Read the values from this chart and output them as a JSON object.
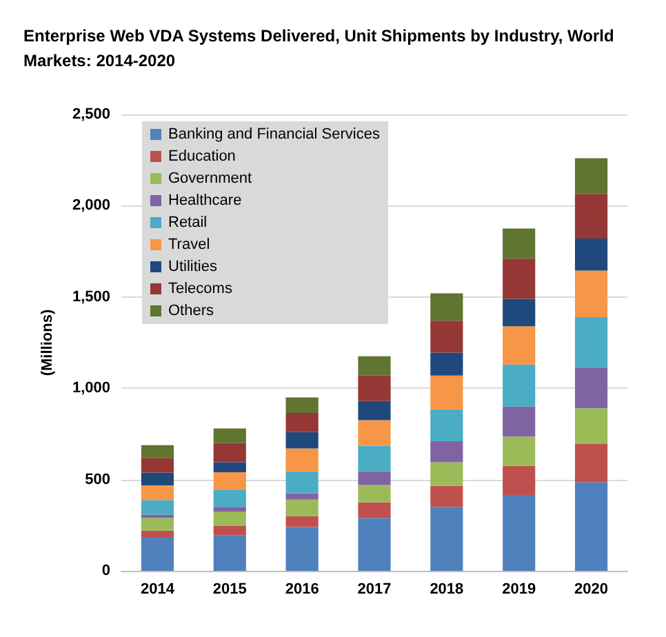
{
  "chart_data": {
    "type": "bar",
    "title": "Enterprise Web VDA Systems Delivered, Unit Shipments by Industry, World Markets: 2014-2020",
    "ylabel": "(Millions)",
    "categories": [
      "2014",
      "2015",
      "2016",
      "2017",
      "2018",
      "2019",
      "2020"
    ],
    "stacked": true,
    "series": [
      {
        "name": "Banking and Financial Services",
        "color": "#4f81bd",
        "values": [
          185,
          195,
          240,
          290,
          350,
          415,
          485
        ]
      },
      {
        "name": "Education",
        "color": "#c0504d",
        "values": [
          35,
          50,
          60,
          85,
          115,
          160,
          210
        ]
      },
      {
        "name": "Government",
        "color": "#9bbb59",
        "values": [
          70,
          80,
          90,
          95,
          130,
          160,
          195
        ]
      },
      {
        "name": "Healthcare",
        "color": "#8064a2",
        "values": [
          18,
          25,
          35,
          75,
          115,
          165,
          220
        ]
      },
      {
        "name": "Retail",
        "color": "#4bacc6",
        "values": [
          80,
          95,
          120,
          140,
          175,
          230,
          280
        ]
      },
      {
        "name": "Travel",
        "color": "#f79646",
        "values": [
          80,
          95,
          125,
          140,
          185,
          210,
          255
        ]
      },
      {
        "name": "Utilities",
        "color": "#1f497d",
        "values": [
          70,
          55,
          90,
          105,
          125,
          150,
          175
        ]
      },
      {
        "name": "Telecoms",
        "color": "#953735",
        "values": [
          80,
          105,
          105,
          140,
          175,
          220,
          245
        ]
      },
      {
        "name": "Others",
        "color": "#5f7530",
        "values": [
          70,
          80,
          85,
          105,
          150,
          165,
          195
        ]
      }
    ],
    "ylim": [
      0,
      2500
    ],
    "yticks": [
      0,
      500,
      {
        "value": 1000,
        "label": "1,000"
      },
      {
        "value": 1500,
        "label": "1,500"
      },
      {
        "value": 2000,
        "label": "2,000"
      },
      {
        "value": 2500,
        "label": "2,500"
      }
    ],
    "grid": "y",
    "legend": "top left"
  }
}
